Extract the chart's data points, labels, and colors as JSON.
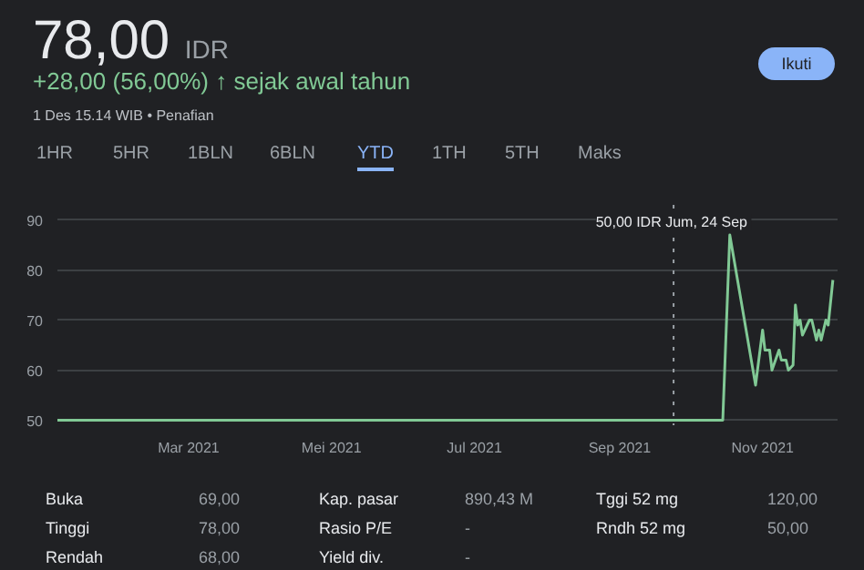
{
  "chart_data": {
    "type": "line",
    "title": "78,00",
    "subtitle": "+28,00 (56,00%) ↑ sejak awal tahun",
    "annotations": [
      "IDR",
      "1 Des 15.14 WIB • Penafian",
      "Ikuti",
      "1HR",
      "5HR",
      "1BLN",
      "6BLN",
      "YTD",
      "1TH",
      "5TH",
      "Maks",
      "Buka",
      "69,00",
      "Kap. pasar",
      "890,43 M",
      "Tggi 52 mg",
      "120,00",
      "Tinggi",
      "78,00",
      "Rasio P/E",
      "-",
      "Rndh 52 mg",
      "50,00",
      "Rendah",
      "68,00",
      "Yield div.",
      "-"
    ],
    "series": [
      {
        "color": "#81c995",
        "x": [
          "2021-01-04",
          "2021-09-24",
          "2021-10-15",
          "2021-10-18",
          "2021-10-29",
          "2021-11-01",
          "2021-11-02",
          "2021-11-04",
          "2021-11-05",
          "2021-11-08",
          "2021-11-09",
          "2021-11-11",
          "2021-11-12",
          "2021-11-14",
          "2021-11-15",
          "2021-11-16",
          "2021-11-17",
          "2021-11-18",
          "2021-11-20",
          "2021-11-21",
          "2021-11-22",
          "2021-11-24",
          "2021-11-25",
          "2021-11-26",
          "2021-11-28",
          "2021-11-29",
          "2021-12-01"
        ],
        "values": [
          50,
          50,
          50,
          87,
          57,
          68,
          64,
          64,
          60,
          64,
          62,
          62,
          60,
          61,
          73,
          69,
          70,
          67,
          69,
          70,
          70,
          66,
          68,
          66,
          70,
          69,
          78
        ]
      }
    ],
    "xlim": [
      "2021-01-04",
      "2021-12-03"
    ],
    "xticks": [
      {
        "value": "2021-03-01",
        "label": "Mar 2021"
      },
      {
        "value": "2021-05-01",
        "label": "Mei 2021"
      },
      {
        "value": "2021-07-01",
        "label": "Jul 2021"
      },
      {
        "value": "2021-09-01",
        "label": "Sep 2021"
      },
      {
        "value": "2021-11-01",
        "label": "Nov 2021"
      }
    ],
    "ylim": [
      49,
      93
    ],
    "yticks": [
      50,
      60,
      70,
      80,
      90
    ],
    "ref_lines": [
      {
        "axis": "x",
        "value": "2021-09-24",
        "label": "50,00 IDR  Jum, 24 Sep",
        "line_style": "dotted",
        "color": "#9aa0a6"
      }
    ],
    "grid": "y",
    "marker": "none",
    "line_style": "solid"
  }
}
